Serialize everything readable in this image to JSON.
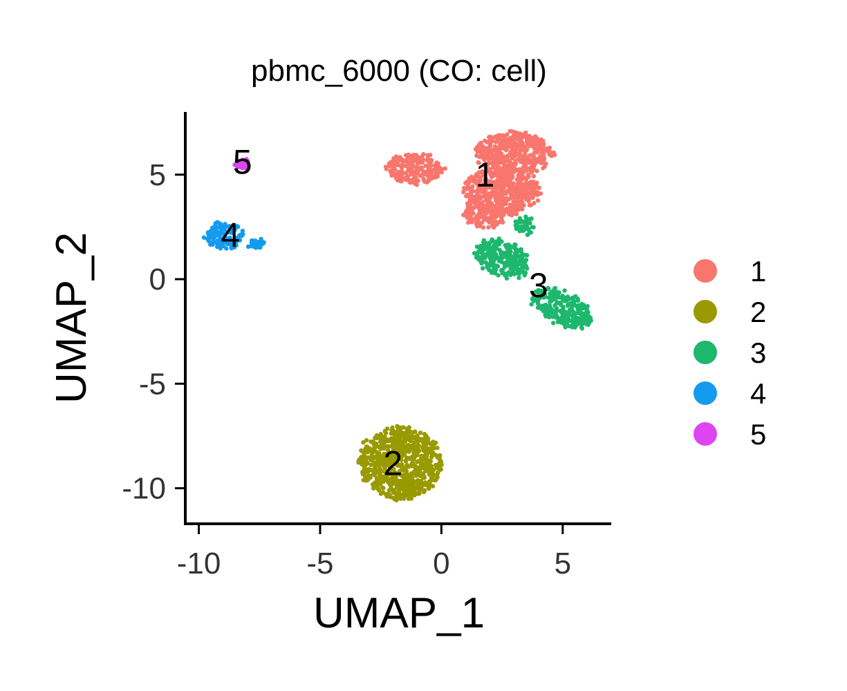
{
  "chart_data": {
    "type": "scatter",
    "title": "pbmc_6000 (CO: cell)",
    "xlabel": "UMAP_1",
    "ylabel": "UMAP_2",
    "xlim": [
      -10.5,
      7
    ],
    "ylim": [
      -11.7,
      8
    ],
    "xticks": [
      -10,
      -5,
      0,
      5
    ],
    "yticks": [
      -10,
      -5,
      0,
      5
    ],
    "xtick_labels": [
      "-10",
      "-5",
      "0",
      "5"
    ],
    "ytick_labels": [
      "-10",
      "-5",
      "0",
      "5"
    ],
    "grid": false,
    "legend_position": "right",
    "series": [
      {
        "name": "1",
        "color": "#F8766D",
        "label_position": [
          1.8,
          5.0
        ],
        "shape": [
          [
            -1.1,
            5.3,
            1.2,
            0.7,
            0
          ],
          [
            3.0,
            6.0,
            1.6,
            1.0,
            0
          ],
          [
            2.5,
            4.2,
            1.6,
            1.1,
            0
          ],
          [
            1.7,
            3.0,
            0.9,
            0.5,
            -0.3
          ]
        ]
      },
      {
        "name": "2",
        "color": "#999900",
        "label_position": [
          -2.0,
          -8.8
        ],
        "shape": [
          [
            -1.7,
            -8.8,
            1.7,
            1.7,
            0
          ]
        ]
      },
      {
        "name": "3",
        "color": "#1DB76E",
        "label_position": [
          4.0,
          -0.3
        ],
        "shape": [
          [
            2.5,
            1.0,
            1.2,
            0.8,
            -0.55
          ],
          [
            5.0,
            -1.4,
            1.4,
            0.7,
            -0.55
          ],
          [
            3.4,
            2.6,
            0.4,
            0.4,
            0
          ]
        ]
      },
      {
        "name": "4",
        "color": "#149BEE",
        "label_position": [
          -8.7,
          2.1
        ],
        "shape": [
          [
            -8.95,
            2.05,
            0.75,
            0.65,
            0
          ],
          [
            -7.6,
            1.7,
            0.3,
            0.15,
            0
          ]
        ]
      },
      {
        "name": "5",
        "color": "#DE45F2",
        "label_position": [
          -8.2,
          5.6
        ],
        "shape": [
          [
            -8.2,
            5.5,
            0.25,
            0.2,
            0
          ]
        ]
      }
    ]
  }
}
